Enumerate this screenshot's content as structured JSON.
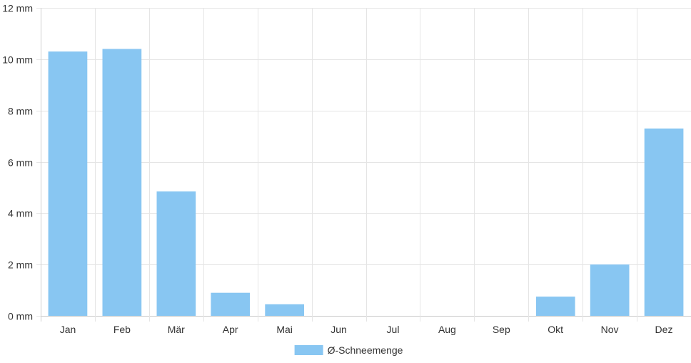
{
  "chart_data": {
    "type": "bar",
    "categories": [
      "Jan",
      "Feb",
      "Mär",
      "Apr",
      "Mai",
      "Jun",
      "Jul",
      "Aug",
      "Sep",
      "Okt",
      "Nov",
      "Dez"
    ],
    "series": [
      {
        "name": "Ø-Schneemenge",
        "values": [
          10.3,
          10.4,
          4.85,
          0.9,
          0.45,
          0,
          0,
          0,
          0,
          0.75,
          2.0,
          7.3
        ],
        "color": "#88c6f2"
      }
    ],
    "yticks": [
      "0 mm",
      "2 mm",
      "4 mm",
      "6 mm",
      "8 mm",
      "10 mm",
      "12 mm"
    ],
    "ylim": [
      0,
      12
    ],
    "y_tick_step": 2,
    "grid": true,
    "legend": "bottom-center"
  }
}
